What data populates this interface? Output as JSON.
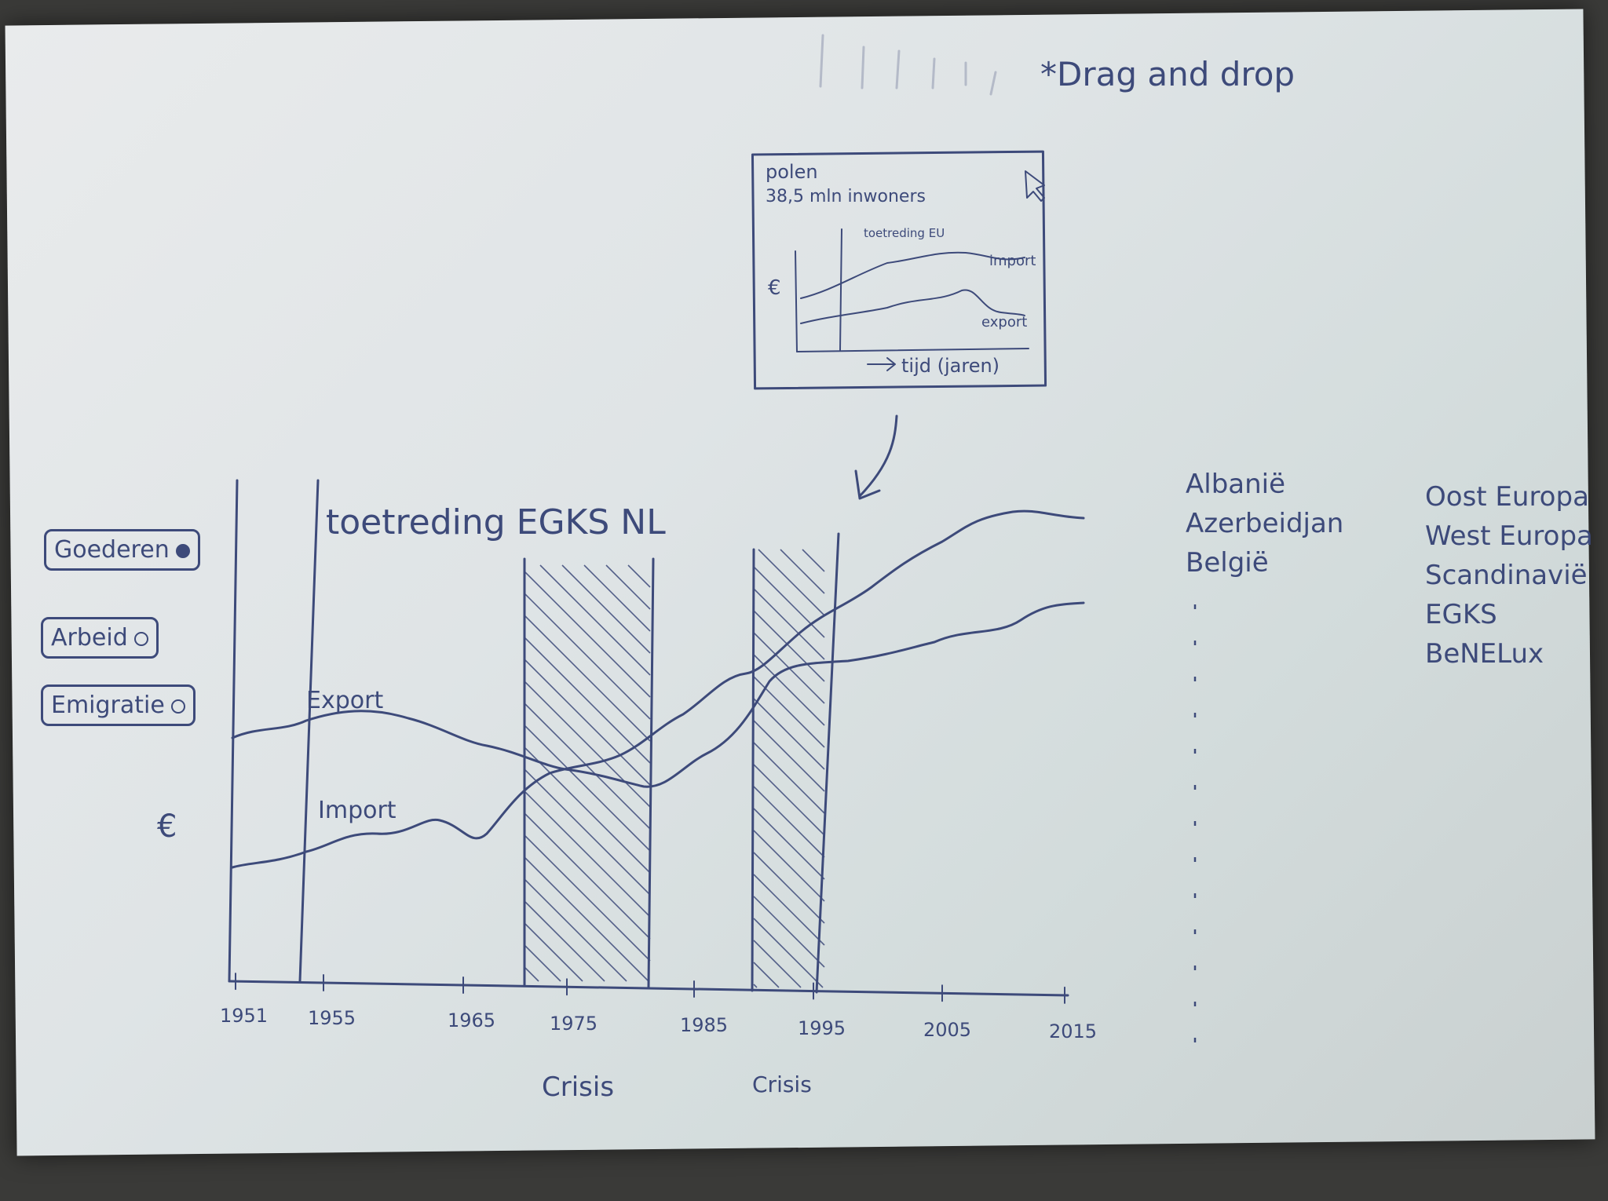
{
  "note": "*Drag and drop",
  "tooltip": {
    "country": "polen",
    "population": "38,5 mln inwoners",
    "event": "toetreding EU",
    "import_label": "import",
    "export_label": "export",
    "y_label": "€",
    "x_label": "tijd (jaren)",
    "icon": "cursor-arrow-icon"
  },
  "buttons": [
    {
      "label": "Goederen",
      "selected": true
    },
    {
      "label": "Arbeid",
      "selected": false
    },
    {
      "label": "Emigratie",
      "selected": false
    }
  ],
  "main_chart": {
    "event_label": "toetreding EGKS NL",
    "y_label": "€",
    "x_ticks": [
      "1951",
      "1955",
      "1965",
      "1975",
      "1985",
      "1995",
      "2005",
      "2015"
    ],
    "export_label": "Export",
    "import_label": "Import",
    "crisis_labels": [
      "Crisis",
      "Crisis"
    ]
  },
  "countries": [
    "Albanië",
    "Azerbeidjan",
    "België"
  ],
  "regions": [
    "Oost Europa",
    "West Europa",
    "Scandinavië",
    "EGKS",
    "BeNELux"
  ],
  "colors": {
    "ink": "#3d4a7a",
    "paper": "#e3e7e8"
  }
}
